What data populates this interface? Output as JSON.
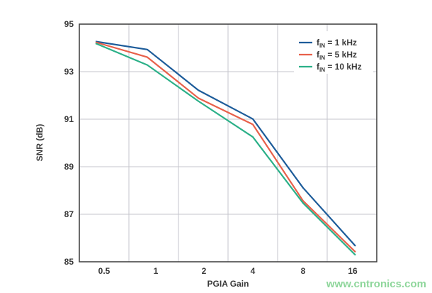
{
  "chart_data": {
    "type": "line",
    "title": "",
    "xlabel": "PGIA Gain",
    "ylabel": "SNR (dB)",
    "categories": [
      "0.5",
      "1",
      "2",
      "4",
      "8",
      "16"
    ],
    "ylim": [
      85,
      95
    ],
    "yticks": [
      85,
      87,
      89,
      91,
      93,
      95
    ],
    "grid": true,
    "legend_position": "top-right",
    "series": [
      {
        "name": "fIN = 1 kHz",
        "sub": "IN",
        "prefix": "f",
        "suffix": " = 1 kHz",
        "color": "#1d5c9a",
        "values": [
          94.27,
          93.93,
          92.22,
          91.01,
          88.11,
          85.66
        ]
      },
      {
        "name": "fIN = 5 kHz",
        "sub": "IN",
        "prefix": "f",
        "suffix": " = 5 kHz",
        "color": "#e8604a",
        "values": [
          94.24,
          93.61,
          91.89,
          90.78,
          87.56,
          85.41
        ]
      },
      {
        "name": "fIN = 10 kHz",
        "sub": "IN",
        "prefix": "f",
        "suffix": " = 10 kHz",
        "color": "#2bb088",
        "values": [
          94.19,
          93.28,
          91.76,
          90.25,
          87.47,
          85.28
        ]
      }
    ]
  },
  "watermark": "www.cntronics.com"
}
